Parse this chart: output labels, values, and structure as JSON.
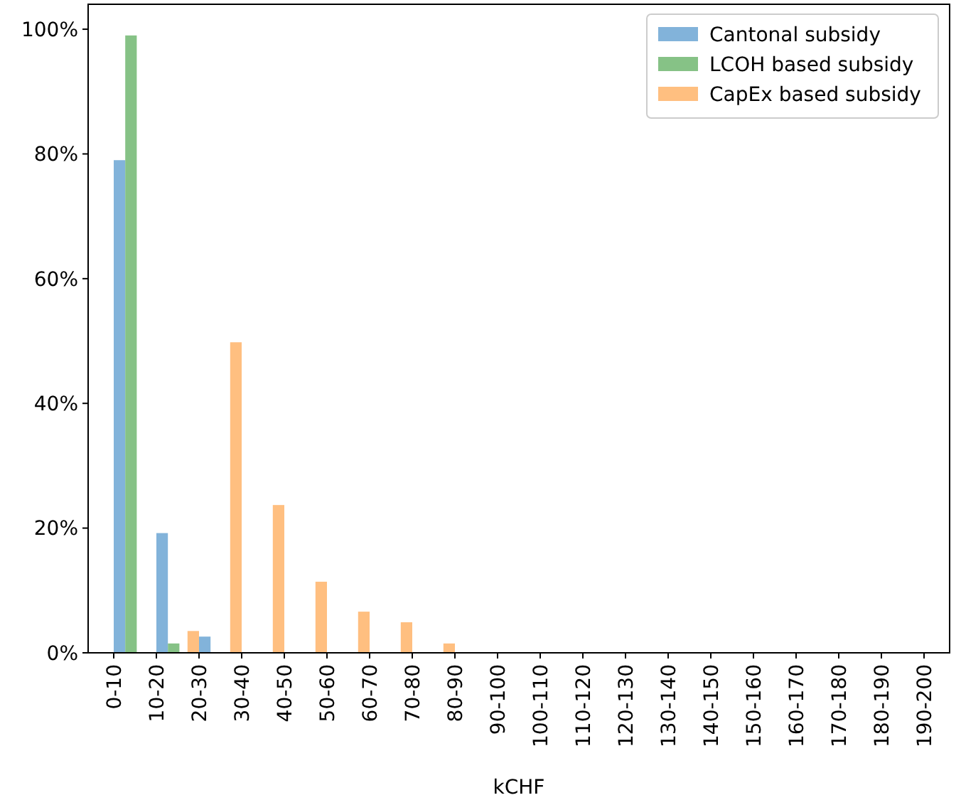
{
  "chart_data": {
    "type": "bar",
    "xlabel": "kCHF",
    "categories": [
      "0-10",
      "10-20",
      "20-30",
      "30-40",
      "40-50",
      "50-60",
      "60-70",
      "70-80",
      "80-90",
      "90-100",
      "100-110",
      "110-120",
      "120-130",
      "130-140",
      "140-150",
      "150-160",
      "160-170",
      "170-180",
      "180-190",
      "190-200"
    ],
    "series": [
      {
        "name": "Cantonal subsidy",
        "color": "#82b3da",
        "values": [
          79,
          19.2,
          2.6,
          0,
          0,
          0,
          0,
          0,
          0,
          0,
          0,
          0,
          0,
          0,
          0,
          0,
          0,
          0,
          0,
          0
        ]
      },
      {
        "name": "LCOH based subsidy",
        "color": "#86c286",
        "values": [
          99,
          1.5,
          0,
          0,
          0,
          0,
          0,
          0,
          0,
          0,
          0,
          0,
          0,
          0,
          0,
          0,
          0,
          0,
          0,
          0
        ]
      },
      {
        "name": "CapEx based subsidy",
        "color": "#ffbf80",
        "values": [
          0,
          0,
          3.5,
          49.8,
          23.7,
          11.4,
          6.6,
          4.9,
          1.5,
          0,
          0,
          0,
          0,
          0,
          0,
          0,
          0,
          0,
          0,
          0
        ]
      }
    ],
    "ylim": [
      0,
      104
    ],
    "yticks": [
      {
        "value": 0,
        "label": "0%"
      },
      {
        "value": 20,
        "label": "20%"
      },
      {
        "value": 40,
        "label": "40%"
      },
      {
        "value": 60,
        "label": "60%"
      },
      {
        "value": 80,
        "label": "80%"
      },
      {
        "value": 100,
        "label": "100%"
      }
    ],
    "grid": false,
    "legend": "top right"
  }
}
